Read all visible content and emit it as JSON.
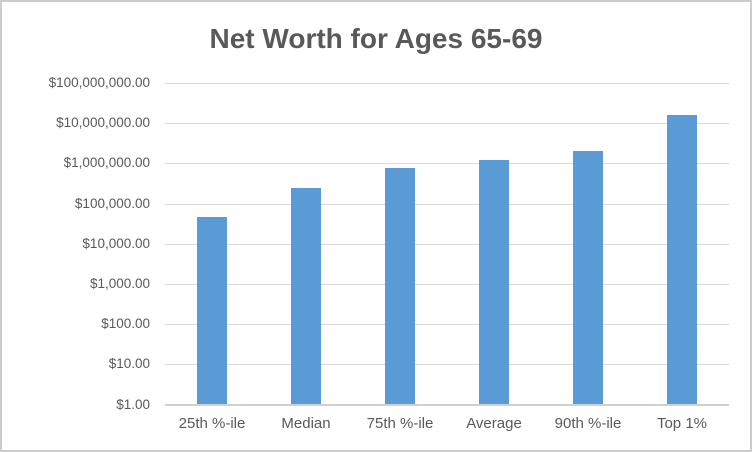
{
  "chart_data": {
    "type": "bar",
    "title": "Net Worth for Ages 65-69",
    "categories": [
      "25th %-ile",
      "Median",
      "75th %-ile",
      "Average",
      "90th %-ile",
      "Top 1%"
    ],
    "values": [
      45000,
      250000,
      750000,
      1200000,
      2000000,
      16000000
    ],
    "xlabel": "",
    "ylabel": "",
    "y_scale": "log10",
    "ylim": [
      1,
      100000000
    ],
    "y_tick_labels_top_to_bottom": [
      "$100,000,000.00",
      "$10,000,000.00",
      "$1,000,000.00",
      "$100,000.00",
      "$10,000.00",
      "$1,000.00",
      "$100.00",
      "$10.00",
      "$1.00"
    ],
    "grid": true,
    "legend": "none",
    "colors": {
      "bar": "#5B9BD5",
      "gridline": "#D9D9D9",
      "axis_line": "#D0D0D0",
      "tick_text": "#595959",
      "title_text": "#595959",
      "background": "#FFFFFF",
      "frame_border": "#CCCCCC"
    }
  }
}
